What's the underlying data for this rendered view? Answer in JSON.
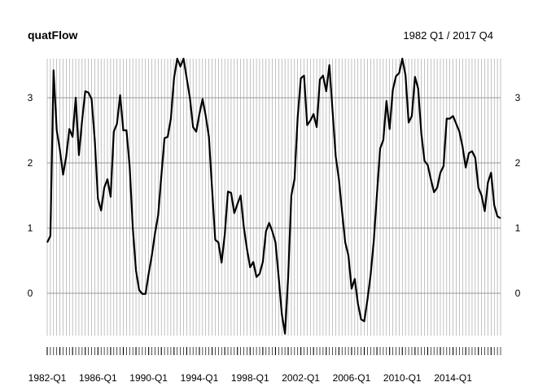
{
  "chart_data": {
    "type": "line",
    "title": "quatFlow",
    "subtitle": "1982 Q1 / 2017 Q4",
    "xlabel": "",
    "ylabel": "",
    "frequency": "quarterly",
    "start": "1982-Q1",
    "end": "2017-Q4",
    "ylim": [
      -0.65,
      3.6
    ],
    "yticks": [
      0,
      1,
      2,
      3
    ],
    "xtick_labels": [
      "1982-Q1",
      "1986-Q1",
      "1990-Q1",
      "1994-Q1",
      "1998-Q1",
      "2002-Q1",
      "2006-Q1",
      "2010-Q1",
      "2014-Q1"
    ],
    "grid": true,
    "line_color": "#000000",
    "grid_color": "#9a9a9a",
    "series": [
      {
        "values": [
          0.78,
          0.88,
          3.42,
          2.5,
          2.2,
          1.82,
          2.1,
          2.52,
          2.4,
          3.0,
          2.12,
          2.65,
          3.1,
          3.08,
          2.98,
          2.35,
          1.45,
          1.27,
          1.62,
          1.75,
          1.48,
          2.48,
          2.6,
          3.04,
          2.5,
          2.5,
          1.95,
          1.0,
          0.35,
          0.05,
          -0.01,
          -0.01,
          0.3,
          0.58,
          0.92,
          1.2,
          1.8,
          2.38,
          2.4,
          2.68,
          3.3,
          3.6,
          3.48,
          3.6,
          3.3,
          3.0,
          2.55,
          2.48,
          2.75,
          2.98,
          2.72,
          2.4,
          1.6,
          0.82,
          0.78,
          0.47,
          0.9,
          1.56,
          1.54,
          1.23,
          1.37,
          1.5,
          1.02,
          0.68,
          0.4,
          0.48,
          0.25,
          0.3,
          0.48,
          0.95,
          1.08,
          0.95,
          0.78,
          0.25,
          -0.32,
          -0.62,
          0.25,
          1.5,
          1.75,
          2.7,
          3.3,
          3.34,
          2.58,
          2.65,
          2.75,
          2.55,
          3.28,
          3.34,
          3.1,
          3.5,
          2.8,
          2.1,
          1.75,
          1.25,
          0.78,
          0.58,
          0.07,
          0.22,
          -0.16,
          -0.4,
          -0.43,
          -0.1,
          0.28,
          0.8,
          1.52,
          2.22,
          2.35,
          2.95,
          2.52,
          3.12,
          3.33,
          3.38,
          3.6,
          3.35,
          2.62,
          2.72,
          3.32,
          3.14,
          2.45,
          2.03,
          1.97,
          1.75,
          1.55,
          1.62,
          1.85,
          1.95,
          2.68,
          2.68,
          2.72,
          2.6,
          2.48,
          2.25,
          1.93,
          2.15,
          2.18,
          2.08,
          1.62,
          1.5,
          1.26,
          1.7,
          1.85,
          1.35,
          1.18,
          1.15
        ]
      }
    ]
  }
}
